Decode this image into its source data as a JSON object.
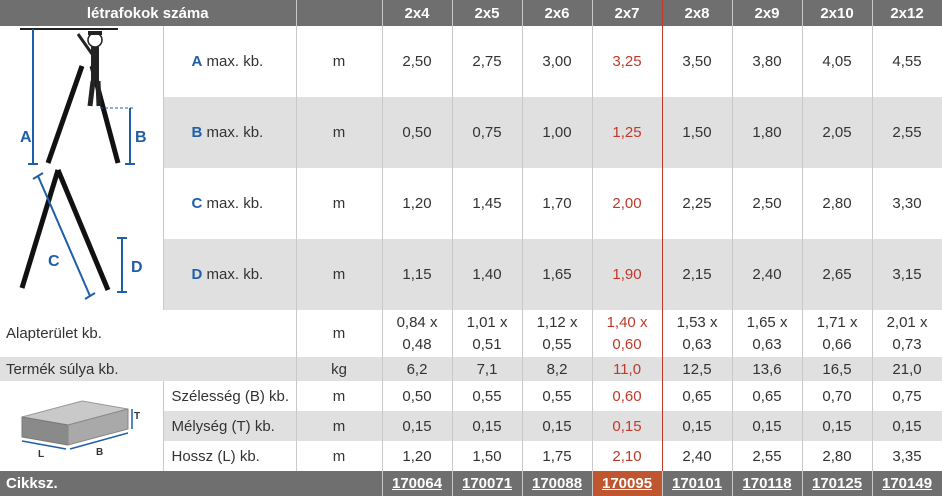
{
  "header": {
    "title": "létrafokok száma",
    "columns": [
      "2x4",
      "2x5",
      "2x6",
      "2x7",
      "2x8",
      "2x9",
      "2x10",
      "2x12"
    ]
  },
  "rows": {
    "A": {
      "key": "A",
      "label": "max. kb.",
      "unit": "m",
      "values": [
        "2,50",
        "2,75",
        "3,00",
        "3,25",
        "3,50",
        "3,80",
        "4,05",
        "4,55"
      ]
    },
    "B": {
      "key": "B",
      "label": "max. kb.",
      "unit": "m",
      "values": [
        "0,50",
        "0,75",
        "1,00",
        "1,25",
        "1,50",
        "1,80",
        "2,05",
        "2,55"
      ]
    },
    "C": {
      "key": "C",
      "label": "max. kb.",
      "unit": "m",
      "values": [
        "1,20",
        "1,45",
        "1,70",
        "2,00",
        "2,25",
        "2,50",
        "2,80",
        "3,30"
      ]
    },
    "D": {
      "key": "D",
      "label": "max. kb.",
      "unit": "m",
      "values": [
        "1,15",
        "1,40",
        "1,65",
        "1,90",
        "2,15",
        "2,40",
        "2,65",
        "3,15"
      ]
    },
    "area": {
      "label": "Alapterület kb.",
      "unit": "m",
      "top": [
        "0,84 x",
        "1,01 x",
        "1,12 x",
        "1,40 x",
        "1,53 x",
        "1,65 x",
        "1,71 x",
        "2,01 x"
      ],
      "bottom": [
        "0,48",
        "0,51",
        "0,55",
        "0,60",
        "0,63",
        "0,63",
        "0,66",
        "0,73"
      ]
    },
    "weight": {
      "label": "Termék súlya kb.",
      "unit": "kg",
      "values": [
        "6,2",
        "7,1",
        "8,2",
        "11,0",
        "12,5",
        "13,6",
        "16,5",
        "21,0"
      ]
    },
    "width": {
      "label": "Szélesség (B) kb.",
      "unit": "m",
      "values": [
        "0,50",
        "0,55",
        "0,55",
        "0,60",
        "0,65",
        "0,65",
        "0,70",
        "0,75"
      ]
    },
    "depth": {
      "label": "Mélység (T) kb.",
      "unit": "m",
      "values": [
        "0,15",
        "0,15",
        "0,15",
        "0,15",
        "0,15",
        "0,15",
        "0,15",
        "0,15"
      ]
    },
    "length": {
      "label": "Hossz (L) kb.",
      "unit": "m",
      "values": [
        "1,20",
        "1,50",
        "1,75",
        "2,10",
        "2,40",
        "2,55",
        "2,80",
        "3,35"
      ]
    }
  },
  "footer": {
    "label": "Cikksz.",
    "codes": [
      "170064",
      "170071",
      "170088",
      "170095",
      "170101",
      "170118",
      "170125",
      "170149"
    ]
  },
  "diagram": {
    "letters": [
      "A",
      "B",
      "C",
      "D"
    ],
    "box_letters": [
      "T",
      "L",
      "B"
    ]
  },
  "colors": {
    "header_bg": "#6f6f6f",
    "row_gray": "#e0e0e0",
    "highlight": "#c0392b",
    "letter_blue": "#1f5ea8"
  }
}
